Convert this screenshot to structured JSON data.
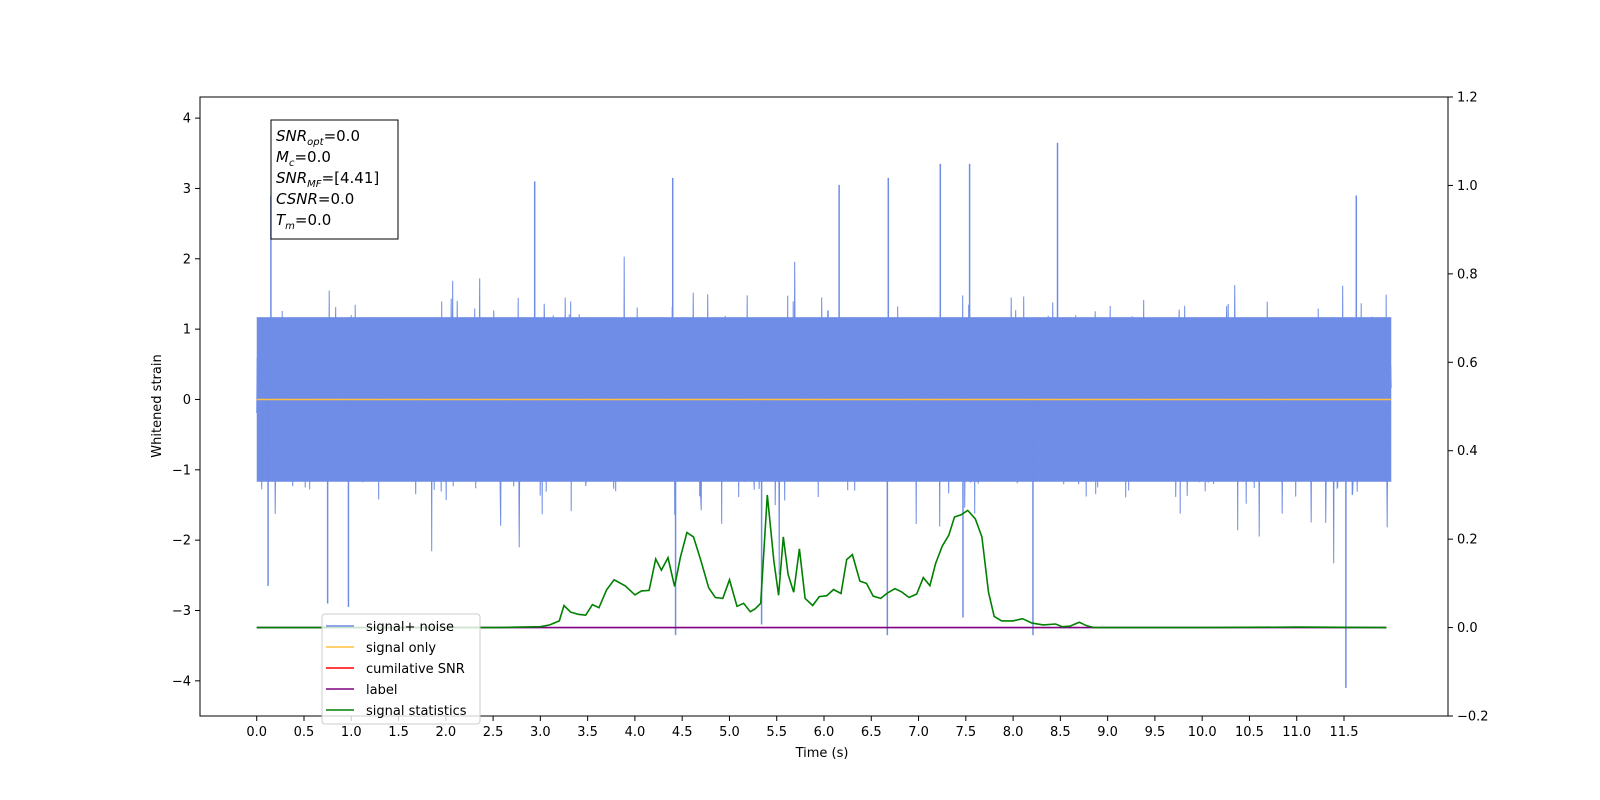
{
  "chart_data": {
    "type": "line",
    "title": "",
    "xlabel": "Time (s)",
    "ylabel": "Whitened strain",
    "y2label": "",
    "xlim": [
      -0.6,
      12.6
    ],
    "ylim": [
      -4.5,
      4.3
    ],
    "y2lim": [
      -0.2,
      1.2
    ],
    "xticks": [
      0.0,
      0.5,
      1.0,
      1.5,
      2.0,
      2.5,
      3.0,
      3.5,
      4.0,
      4.5,
      5.0,
      5.5,
      6.0,
      6.5,
      7.0,
      7.5,
      8.0,
      8.5,
      9.0,
      9.5,
      10.0,
      10.5,
      11.0,
      11.5
    ],
    "xtick_labels": [
      "0.0",
      "0.5",
      "1.0",
      "1.5",
      "2.0",
      "2.5",
      "3.0",
      "3.5",
      "4.0",
      "4.5",
      "5.0",
      "5.5",
      "6.0",
      "6.5",
      "7.0",
      "7.5",
      "8.0",
      "8.5",
      "9.0",
      "9.5",
      "10.0",
      "10.5",
      "11.0",
      "11.5"
    ],
    "yticks": [
      -4,
      -3,
      -2,
      -1,
      0,
      1,
      2,
      3,
      4
    ],
    "ytick_labels": [
      "−4",
      "−3",
      "−2",
      "−1",
      "0",
      "1",
      "2",
      "3",
      "4"
    ],
    "y2ticks": [
      -0.2,
      0.0,
      0.2,
      0.4,
      0.6,
      0.8,
      1.0,
      1.2
    ],
    "y2tick_labels": [
      "−0.2",
      "0.0",
      "0.2",
      "0.4",
      "0.6",
      "0.8",
      "1.0",
      "1.2"
    ],
    "grid": false,
    "legend_position": "bottom-left",
    "legend": [
      {
        "label": "signal+ noise",
        "color": "#6f8de6"
      },
      {
        "label": "signal only",
        "color": "#ffbf40"
      },
      {
        "label": "cumilative SNR",
        "color": "#ff0000"
      },
      {
        "label": "label",
        "color": "#800080"
      },
      {
        "label": "signal statistics",
        "color": "#008000"
      }
    ],
    "stats_box": [
      {
        "main": "SNR",
        "sub": "opt",
        "value": "=0.0"
      },
      {
        "main": "M",
        "sub": "c",
        "value": "=0.0"
      },
      {
        "main": "SNR",
        "sub": "MF",
        "value": "=[4.41]"
      },
      {
        "main": "CSNR",
        "sub": "",
        "value": "=0.0"
      },
      {
        "main": "T",
        "sub": "m",
        "value": "=0.0"
      }
    ],
    "series": [
      {
        "name": "signal+ noise",
        "color": "#6f8de6",
        "axis": "left",
        "x_range": [
          0.0,
          12.0
        ],
        "typical_band": [
          -1.5,
          1.5
        ],
        "spikes": [
          {
            "x": 0.12,
            "y": -2.65
          },
          {
            "x": 0.15,
            "y": 2.9
          },
          {
            "x": 0.75,
            "y": -2.9
          },
          {
            "x": 0.97,
            "y": -2.95
          },
          {
            "x": 2.94,
            "y": 3.1
          },
          {
            "x": 4.4,
            "y": 3.15
          },
          {
            "x": 4.43,
            "y": -3.35
          },
          {
            "x": 5.34,
            "y": -3.2
          },
          {
            "x": 6.16,
            "y": 3.05
          },
          {
            "x": 6.67,
            "y": -3.35
          },
          {
            "x": 6.68,
            "y": 3.15
          },
          {
            "x": 7.23,
            "y": 3.35
          },
          {
            "x": 7.47,
            "y": -3.1
          },
          {
            "x": 7.54,
            "y": 3.35
          },
          {
            "x": 8.21,
            "y": -3.35
          },
          {
            "x": 8.47,
            "y": 3.65
          },
          {
            "x": 11.52,
            "y": -4.1
          },
          {
            "x": 11.63,
            "y": 2.9
          }
        ]
      },
      {
        "name": "signal only",
        "color": "#ffbf40",
        "axis": "left",
        "x": [
          0.0,
          12.0
        ],
        "y": [
          0.0,
          0.0
        ]
      },
      {
        "name": "label",
        "color": "#800080",
        "axis": "right",
        "x": [
          0.0,
          11.95
        ],
        "y": [
          0.0,
          0.0
        ]
      },
      {
        "name": "signal statistics",
        "color": "#008000",
        "axis": "right",
        "x": [
          0.0,
          2.5,
          3.0,
          3.1,
          3.2,
          3.25,
          3.32,
          3.4,
          3.48,
          3.55,
          3.62,
          3.7,
          3.78,
          3.9,
          4.0,
          4.07,
          4.15,
          4.22,
          4.28,
          4.35,
          4.42,
          4.48,
          4.55,
          4.62,
          4.7,
          4.78,
          4.85,
          4.93,
          5.0,
          5.08,
          5.15,
          5.22,
          5.27,
          5.33,
          5.4,
          5.47,
          5.52,
          5.57,
          5.62,
          5.68,
          5.74,
          5.8,
          5.88,
          5.95,
          6.03,
          6.1,
          6.18,
          6.24,
          6.3,
          6.38,
          6.45,
          6.52,
          6.6,
          6.67,
          6.75,
          6.82,
          6.9,
          6.98,
          7.05,
          7.12,
          7.18,
          7.25,
          7.32,
          7.38,
          7.45,
          7.52,
          7.6,
          7.67,
          7.74,
          7.8,
          7.88,
          8.0,
          8.1,
          8.2,
          8.32,
          8.45,
          8.52,
          8.6,
          8.7,
          8.78,
          8.86,
          9.0,
          9.5,
          10.0,
          11.0,
          11.95
        ],
        "y": [
          0.0,
          0.0,
          0.002,
          0.006,
          0.015,
          0.05,
          0.035,
          0.03,
          0.028,
          0.052,
          0.045,
          0.085,
          0.108,
          0.094,
          0.074,
          0.083,
          0.084,
          0.155,
          0.13,
          0.158,
          0.093,
          0.158,
          0.215,
          0.205,
          0.15,
          0.09,
          0.068,
          0.066,
          0.108,
          0.048,
          0.055,
          0.036,
          0.042,
          0.055,
          0.3,
          0.15,
          0.073,
          0.205,
          0.12,
          0.08,
          0.178,
          0.066,
          0.05,
          0.07,
          0.072,
          0.086,
          0.077,
          0.154,
          0.165,
          0.105,
          0.1,
          0.071,
          0.066,
          0.078,
          0.088,
          0.081,
          0.068,
          0.076,
          0.113,
          0.095,
          0.145,
          0.184,
          0.209,
          0.25,
          0.255,
          0.265,
          0.246,
          0.205,
          0.08,
          0.025,
          0.015,
          0.015,
          0.02,
          0.01,
          0.006,
          0.008,
          0.002,
          0.003,
          0.012,
          0.004,
          0.0,
          0.0,
          0.0,
          0.0,
          0.001,
          0.0
        ]
      }
    ]
  }
}
